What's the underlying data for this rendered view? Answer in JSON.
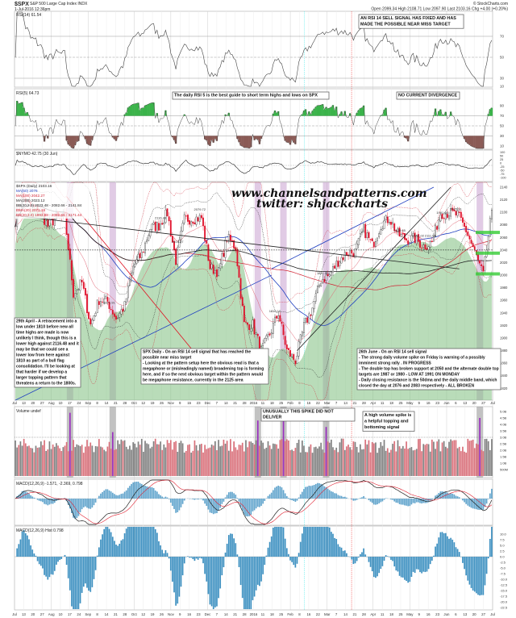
{
  "header": {
    "symbol": "$SPX",
    "name": "S&P 500 Large Cap Index INDX",
    "date": "1-Jul-2016 12:36pm",
    "copyright": "© StockCharts.com",
    "ohlc": "Open 2099.34  High 2108.71  Low 2097.90  Last 2103.16  Chg +4.00 (+0.20%)"
  },
  "panels": {
    "rsi14": {
      "label": "RSI(14) 61.54",
      "ticks": [
        "70",
        "50",
        "30",
        "10"
      ]
    },
    "rsi5": {
      "label": "RSI(5) 64.73",
      "ticks": [
        "90",
        "70",
        "50",
        "30",
        "10"
      ]
    },
    "nymo": {
      "label": "$NYMO 42.75 (30 Jun)",
      "ticks": [
        "100",
        "50",
        "25",
        "0",
        "-25",
        "-50",
        "-75",
        "-100"
      ]
    },
    "price": {
      "legend": [
        "$SPX (Daily) 2103.16",
        "MA(50) 2076",
        "MA(100) 2042.27",
        "MA(200) 2023.12",
        "BB(20,2.0) 2023.48 - 2082.66 - 2141.84",
        "EMA(20) 2071.18",
        "BB(20,3.0) 1993.88 - 2082.66 - 2171.44"
      ],
      "ticks": [
        "2140",
        "2120",
        "2100",
        "2080",
        "2060",
        "2040",
        "2020",
        "2000",
        "1980",
        "1960",
        "1940",
        "1920",
        "1900",
        "1880",
        "1860",
        "1840",
        "1820"
      ]
    },
    "volume": {
      "label": "Volume undef",
      "ticks": [
        "5.0B",
        "4.5B",
        "4.0B",
        "3.5B",
        "3.0B",
        "2.5B",
        "2.0B",
        "1.5B",
        "1.0B",
        "500M"
      ]
    },
    "macd": {
      "label": "MACD(12,26,9) -1.571, -2.369, 0.798"
    },
    "hist": {
      "label": "MACD(12,26,9) Hist 0.798",
      "ticks": [
        "10.0",
        "7.5",
        "5.0",
        "2.5",
        "0.0",
        "-2.5",
        "-5.0",
        "-7.5",
        "-10.0",
        "-12.5",
        "-15.0",
        "-17.5",
        "-20.0",
        "-22.5"
      ]
    }
  },
  "annotations": {
    "rsi14_note": "AN RSI 14 SELL SIGNAL HAS FIXED AND HAS MADE THE POSSIBLE NEAR MISS TARGET",
    "rsi5_note": "The daily RSI 5 is the best guide to short term highs and lows on SPX",
    "divergence_note": "NO CURRENT DIVERGENCE",
    "watermark_site": "www.channelsandpatterns.com",
    "watermark_twitter": "twitter: shjackcharts",
    "april_note": "29th April - A retracement into a low under 1810 before new all time highs are made is now unlikely I think, though this is a lower high against 2116.48 and it may be that we could see a lower low from here against 1810 as part of a bull flag consolidation. I'll be looking at that harder if we develop a larger topping pattern that threatens a return to the 1800s.",
    "spx_daily_note": "SPX Daily - On an RSI 14 sell signal that has reached the possible near miss target\n- Looking at the pattern setup here the obvious read is that a megaphone or (misleadingly named) broadening top is forming here, and if so the next obvious target within the pattern would be megaphone resistance, currently in the 2125 area",
    "june_note": "26th June - On an RSI 14 sell signal\n- The strong daily volume spike on Friday is warning of a possibly imminent strong rally . IN PROGRESS\n- The double top has broken support at 2050 and the alternate double top targets are 1987 or 1980 - LOW AT 1991 ON MONDAY\n- Daily closing resistance is the 50dma and the daily middle band, which closed the day at 2076 and 2083 respectively - ALL BROKEN",
    "spike_note": "UNUSUALLY THIS SPIKE DID NOT DELIVER",
    "volume_note": "A high volume spike is a helpful topping and bottoming signal",
    "price_labels": [
      "2116.48",
      "2104.27",
      "2079.72",
      "2111.05",
      "1991.68",
      "1810.10",
      "1871.91",
      "1891.00",
      "2128.65",
      "2112.02",
      "2025.91"
    ]
  },
  "x_axis": [
    "Jul",
    "13",
    "20",
    "27",
    "Aug",
    "10",
    "17",
    "24",
    "Sep",
    "8",
    "14",
    "21",
    "28",
    "Oct",
    "12",
    "19",
    "26",
    "Nov",
    "9",
    "16",
    "23",
    "Dec",
    "7",
    "14",
    "21",
    "28",
    "2016",
    "11",
    "18",
    "25",
    "Feb",
    "8",
    "16",
    "22",
    "Mar",
    "7",
    "14",
    "21",
    "28",
    "Apr",
    "11",
    "18",
    "25",
    "May",
    "9",
    "16",
    "23",
    "Jun",
    "6",
    "13",
    "20",
    "27",
    "Jul"
  ],
  "colors": {
    "up": "#222222",
    "down": "#e0102a",
    "green_fill": "#7fbf7f",
    "spike_band": "#c9a0d0",
    "macd_hist": "#3b8fc0",
    "vol_up": "#808080",
    "vol_down": "#d9707a"
  },
  "chart_data": {
    "type": "line",
    "title": "$SPX S&P 500 Large Cap Index (Daily)",
    "x_unit": "week",
    "weekly_close": [
      2077,
      2126,
      2108,
      2104,
      2078,
      2092,
      2091,
      1971,
      1988,
      1921,
      1961,
      1958,
      1931,
      1951,
      2014,
      2033,
      2075,
      2079,
      2099,
      2023,
      2089,
      2090,
      2091,
      2012,
      2005,
      2060,
      2044,
      1922,
      1921,
      1880,
      1906,
      1940,
      1880,
      1864,
      1918,
      1948,
      1993,
      2000,
      2022,
      2035,
      2037,
      2073,
      2047,
      2080,
      2091,
      2065,
      2057,
      2058,
      2046,
      2052,
      2099,
      2099,
      2096,
      2071,
      2037,
      2000,
      2103
    ],
    "ylim": [
      1810,
      2140
    ],
    "volume_spike_weeks": [
      7,
      12,
      29,
      32,
      37,
      55
    ],
    "volume_spike_values_B": [
      4.9,
      3.4,
      4.3,
      4.4,
      3.8,
      4.5
    ]
  }
}
